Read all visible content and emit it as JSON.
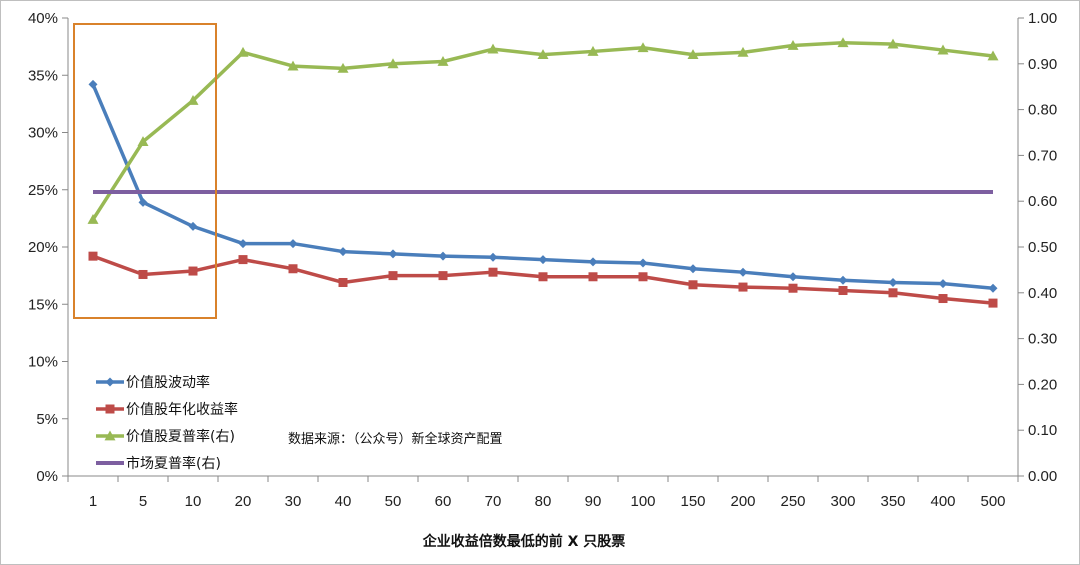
{
  "chart_data": {
    "type": "line",
    "categories": [
      "1",
      "5",
      "10",
      "20",
      "30",
      "40",
      "50",
      "60",
      "70",
      "80",
      "90",
      "100",
      "150",
      "200",
      "250",
      "300",
      "350",
      "400",
      "500"
    ],
    "xlabel": "企业收益倍数最低的前 X 只股票",
    "y_left": {
      "min": 0,
      "max": 40,
      "ticks": [
        0,
        5,
        10,
        15,
        20,
        25,
        30,
        35,
        40
      ],
      "tick_labels": [
        "0%",
        "5%",
        "10%",
        "15%",
        "20%",
        "25%",
        "30%",
        "35%",
        "40%"
      ]
    },
    "y_right": {
      "min": 0,
      "max": 1.0,
      "ticks": [
        0,
        0.1,
        0.2,
        0.3,
        0.4,
        0.5,
        0.6,
        0.7,
        0.8,
        0.9,
        1.0
      ],
      "tick_labels": [
        "0.00",
        "0.10",
        "0.20",
        "0.30",
        "0.40",
        "0.50",
        "0.60",
        "0.70",
        "0.80",
        "0.90",
        "1.00"
      ]
    },
    "series": [
      {
        "name": "价值股波动率",
        "axis": "left",
        "color": "#4a7ebb",
        "marker": "diamond",
        "values": [
          34.2,
          23.9,
          21.8,
          20.3,
          20.3,
          19.6,
          19.4,
          19.2,
          19.1,
          18.9,
          18.7,
          18.6,
          18.1,
          17.8,
          17.4,
          17.1,
          16.9,
          16.8,
          16.4
        ]
      },
      {
        "name": "价值股年化收益率",
        "axis": "left",
        "color": "#be4b48",
        "marker": "square",
        "values": [
          19.2,
          17.6,
          17.9,
          18.9,
          18.1,
          16.9,
          17.5,
          17.5,
          17.8,
          17.4,
          17.4,
          17.4,
          16.7,
          16.5,
          16.4,
          16.2,
          16.0,
          15.5,
          15.1
        ]
      },
      {
        "name": "价值股夏普率(右)",
        "axis": "right",
        "color": "#98b954",
        "marker": "triangle",
        "values": [
          0.56,
          0.73,
          0.82,
          0.925,
          0.895,
          0.89,
          0.9,
          0.905,
          0.932,
          0.92,
          0.927,
          0.935,
          0.92,
          0.925,
          0.94,
          0.946,
          0.943,
          0.93,
          0.917
        ]
      },
      {
        "name": "市场夏普率(右)",
        "axis": "right",
        "color": "#7d5fa0",
        "marker": "none",
        "values": [
          0.62,
          0.62,
          0.62,
          0.62,
          0.62,
          0.62,
          0.62,
          0.62,
          0.62,
          0.62,
          0.62,
          0.62,
          0.62,
          0.62,
          0.62,
          0.62,
          0.62,
          0.62,
          0.62
        ]
      }
    ],
    "legend_position": "bottom-left",
    "annotation": "数据来源：（公众号）新全球资产配置",
    "highlight_box": {
      "from_category": "1",
      "to_category": "10",
      "color": "#d9822b"
    },
    "grid": false
  }
}
